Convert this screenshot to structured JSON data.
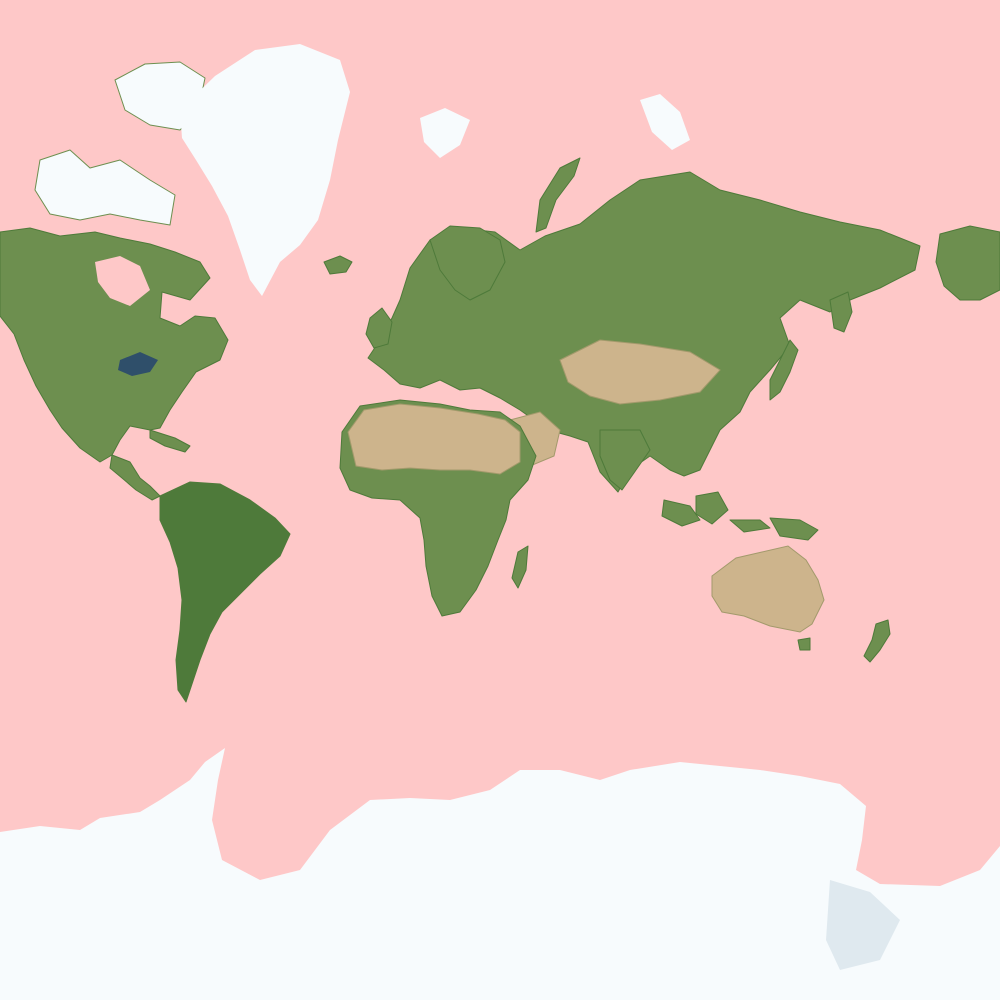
{
  "map": {
    "projection": "mercator",
    "colors": {
      "ocean": "#fec8c8",
      "land_forest": "#4e7a3a",
      "land_green": "#6d8f4f",
      "land_desert": "#cdb48c",
      "land_steppe": "#a39a6c",
      "ice": "#f7fbfd",
      "ice_shadow": "#dfe9ef",
      "lake": "#2f4f6a"
    },
    "features": [
      {
        "name": "north-america",
        "kind": "land"
      },
      {
        "name": "canadian-arctic-archipelago",
        "kind": "land"
      },
      {
        "name": "greenland",
        "kind": "ice"
      },
      {
        "name": "iceland",
        "kind": "land"
      },
      {
        "name": "svalbard",
        "kind": "ice"
      },
      {
        "name": "novaya-zemlya",
        "kind": "land"
      },
      {
        "name": "great-lakes",
        "kind": "lake"
      },
      {
        "name": "central-america",
        "kind": "land"
      },
      {
        "name": "caribbean-islands",
        "kind": "land"
      },
      {
        "name": "south-america",
        "kind": "land"
      },
      {
        "name": "europe-asia",
        "kind": "land"
      },
      {
        "name": "great-britain",
        "kind": "land"
      },
      {
        "name": "scandinavia",
        "kind": "land"
      },
      {
        "name": "africa",
        "kind": "land"
      },
      {
        "name": "sahara-desert",
        "kind": "desert"
      },
      {
        "name": "arabian-desert",
        "kind": "desert"
      },
      {
        "name": "central-asia-steppe",
        "kind": "desert"
      },
      {
        "name": "madagascar",
        "kind": "land"
      },
      {
        "name": "indian-subcontinent",
        "kind": "land"
      },
      {
        "name": "japan",
        "kind": "land"
      },
      {
        "name": "chukotka",
        "kind": "land"
      },
      {
        "name": "indonesia-islands",
        "kind": "land"
      },
      {
        "name": "new-guinea",
        "kind": "land"
      },
      {
        "name": "australia",
        "kind": "desert"
      },
      {
        "name": "new-zealand",
        "kind": "land"
      },
      {
        "name": "antarctica",
        "kind": "ice"
      }
    ]
  }
}
